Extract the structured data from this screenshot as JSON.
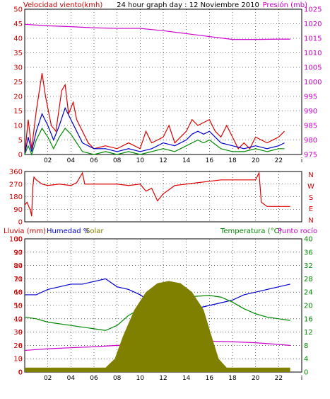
{
  "chart_data": [
    {
      "type": "line",
      "title": "24 hour graph day : 12 Noviembre 2010",
      "ylabel_left": "Velocidad viento(kmh)",
      "ylabel_right": "Presión (mb)",
      "x_ticks": [
        "02",
        "04",
        "06",
        "08",
        "10",
        "12",
        "14",
        "16",
        "18",
        "20",
        "22",
        "i"
      ],
      "y_left_ticks": [
        0,
        5,
        10,
        15,
        20,
        25,
        30,
        35,
        40,
        45,
        50
      ],
      "y_left_range": [
        0,
        50
      ],
      "y_right_ticks": [
        975,
        980,
        985,
        990,
        995,
        1000,
        1005,
        1010,
        1015,
        1020,
        1025
      ],
      "y_right_range": [
        975,
        1025
      ],
      "grid": true,
      "colors": {
        "gust": "#dd0000",
        "wind": "#0000cc",
        "min": "#008800",
        "pressure": "#cc00cc",
        "left_axis": "#cc0000",
        "right_axis": "#cc00cc"
      },
      "series": [
        {
          "color": "#dd0000",
          "axis": "left",
          "points": [
            [
              0,
              0
            ],
            [
              0.3,
              12
            ],
            [
              0.6,
              2
            ],
            [
              1,
              15
            ],
            [
              1.5,
              28
            ],
            [
              1.8,
              20
            ],
            [
              2.3,
              10
            ],
            [
              2.7,
              8
            ],
            [
              3.2,
              22
            ],
            [
              3.5,
              24
            ],
            [
              3.8,
              14
            ],
            [
              4.2,
              18
            ],
            [
              4.5,
              12
            ],
            [
              5,
              8
            ],
            [
              5.5,
              4
            ],
            [
              6,
              2
            ],
            [
              7,
              3
            ],
            [
              8,
              2
            ],
            [
              9,
              4
            ],
            [
              10,
              2
            ],
            [
              10.5,
              8
            ],
            [
              11,
              4
            ],
            [
              12,
              6
            ],
            [
              12.5,
              10
            ],
            [
              13,
              4
            ],
            [
              14,
              8
            ],
            [
              14.5,
              12
            ],
            [
              15,
              10
            ],
            [
              15.5,
              11
            ],
            [
              16,
              12
            ],
            [
              16.5,
              8
            ],
            [
              17,
              6
            ],
            [
              17.5,
              10
            ],
            [
              18,
              6
            ],
            [
              18.5,
              2
            ],
            [
              19,
              4
            ],
            [
              19.5,
              2
            ],
            [
              20,
              6
            ],
            [
              21,
              4
            ],
            [
              22,
              6
            ],
            [
              22.5,
              8
            ]
          ]
        },
        {
          "color": "#0000cc",
          "axis": "left",
          "points": [
            [
              0,
              0
            ],
            [
              0.3,
              6
            ],
            [
              0.6,
              1
            ],
            [
              1,
              8
            ],
            [
              1.5,
              14
            ],
            [
              2,
              10
            ],
            [
              2.5,
              5
            ],
            [
              3,
              10
            ],
            [
              3.5,
              16
            ],
            [
              4,
              12
            ],
            [
              4.5,
              8
            ],
            [
              5,
              4
            ],
            [
              6,
              2
            ],
            [
              7,
              2
            ],
            [
              8,
              1
            ],
            [
              9,
              2
            ],
            [
              10,
              1
            ],
            [
              11,
              2
            ],
            [
              12,
              4
            ],
            [
              13,
              3
            ],
            [
              14,
              5
            ],
            [
              14.5,
              7
            ],
            [
              15,
              8
            ],
            [
              15.5,
              7
            ],
            [
              16,
              8
            ],
            [
              17,
              4
            ],
            [
              18,
              3
            ],
            [
              19,
              2
            ],
            [
              20,
              3
            ],
            [
              21,
              2
            ],
            [
              22,
              3
            ],
            [
              22.5,
              4
            ]
          ]
        },
        {
          "color": "#008800",
          "axis": "left",
          "points": [
            [
              0,
              0
            ],
            [
              0.3,
              3
            ],
            [
              0.6,
              0
            ],
            [
              1,
              5
            ],
            [
              1.5,
              9
            ],
            [
              2,
              6
            ],
            [
              2.5,
              2
            ],
            [
              3,
              6
            ],
            [
              3.5,
              9
            ],
            [
              4,
              7
            ],
            [
              4.5,
              4
            ],
            [
              5,
              1
            ],
            [
              6,
              0
            ],
            [
              7,
              1
            ],
            [
              8,
              0
            ],
            [
              9,
              1
            ],
            [
              10,
              0
            ],
            [
              11,
              1
            ],
            [
              12,
              2
            ],
            [
              13,
              1
            ],
            [
              14,
              3
            ],
            [
              14.5,
              4
            ],
            [
              15,
              5
            ],
            [
              15.5,
              4
            ],
            [
              16,
              5
            ],
            [
              17,
              2
            ],
            [
              18,
              1
            ],
            [
              19,
              1
            ],
            [
              20,
              2
            ],
            [
              21,
              1
            ],
            [
              22,
              2
            ],
            [
              22.5,
              2
            ]
          ]
        },
        {
          "color": "#cc00cc",
          "axis": "right",
          "points": [
            [
              0,
              1019.8
            ],
            [
              2,
              1019.3
            ],
            [
              4,
              1019.0
            ],
            [
              6,
              1018.6
            ],
            [
              8,
              1018.4
            ],
            [
              10,
              1018.4
            ],
            [
              12,
              1017.6
            ],
            [
              14,
              1016.6
            ],
            [
              16,
              1015.6
            ],
            [
              18,
              1014.6
            ],
            [
              20,
              1014.6
            ],
            [
              22,
              1014.7
            ],
            [
              23,
              1014.7
            ]
          ]
        }
      ]
    },
    {
      "type": "line",
      "ylabel_right": "N W S E N",
      "compass": [
        "N",
        "W",
        "S",
        "E",
        "N"
      ],
      "x_ticks": [
        "02",
        "04",
        "06",
        "08",
        "10",
        "12",
        "14",
        "16",
        "18",
        "20",
        "22",
        "i"
      ],
      "y_left_ticks": [
        0,
        90,
        180,
        270,
        360
      ],
      "y_left_range": [
        0,
        360
      ],
      "grid": true,
      "colors": {
        "direction": "#dd0000",
        "axis": "#cc0000",
        "compass": "#cc0000"
      },
      "series": [
        {
          "name": "",
          "color": "#dd0000",
          "points": [
            [
              0,
              120
            ],
            [
              0.2,
              140
            ],
            [
              0.5,
              80
            ],
            [
              0.6,
              40
            ],
            [
              0.7,
              250
            ],
            [
              0.8,
              320
            ],
            [
              1,
              300
            ],
            [
              1.5,
              270
            ],
            [
              2,
              260
            ],
            [
              3,
              270
            ],
            [
              4,
              260
            ],
            [
              4.5,
              280
            ],
            [
              5,
              350
            ],
            [
              5.2,
              270
            ],
            [
              6,
              270
            ],
            [
              7,
              270
            ],
            [
              8,
              270
            ],
            [
              9,
              260
            ],
            [
              10,
              270
            ],
            [
              10.5,
              220
            ],
            [
              11,
              240
            ],
            [
              11.5,
              150
            ],
            [
              12,
              200
            ],
            [
              12.5,
              230
            ],
            [
              13,
              260
            ],
            [
              14,
              270
            ],
            [
              15,
              280
            ],
            [
              16,
              290
            ],
            [
              17,
              300
            ],
            [
              18,
              300
            ],
            [
              19,
              300
            ],
            [
              20,
              300
            ],
            [
              20.3,
              350
            ],
            [
              20.5,
              140
            ],
            [
              21,
              110
            ],
            [
              22,
              110
            ],
            [
              23,
              110
            ]
          ]
        }
      ]
    },
    {
      "type": "area",
      "legend": [
        "Lluvia (mm)",
        "Humedad %",
        "Solar",
        "Temperatura (°C)",
        "Punto rocío"
      ],
      "ylabel_left": "Lluvia (mm)",
      "ylabel_right": "Temperatura (°C)",
      "x_ticks": [
        "02",
        "04",
        "06",
        "08",
        "10",
        "12",
        "14",
        "16",
        "18",
        "20",
        "22",
        "i"
      ],
      "y_left_ticks": [
        0,
        10,
        20,
        30,
        40,
        50,
        60,
        70,
        80,
        90,
        100
      ],
      "y_left_range": [
        0,
        100
      ],
      "y_mid_ticks": [
        0,
        3,
        6,
        9,
        12,
        15,
        18,
        21,
        24,
        27,
        30
      ],
      "y_mid_range": [
        0,
        30
      ],
      "y_right_ticks": [
        0,
        4,
        8,
        12,
        16,
        20,
        24,
        28,
        32,
        36,
        40
      ],
      "y_right_range": [
        0,
        40
      ],
      "grid": true,
      "colors": {
        "rain": "#cc0000",
        "humidity": "#0000cc",
        "solar": "#808000",
        "temperature": "#008800",
        "dewpoint": "#cc00cc",
        "left_axis": "#cc0000",
        "mid_axis": "#cc0000",
        "right_axis": "#008800"
      },
      "series": [
        {
          "color": "#0000cc",
          "axis": "left",
          "points": [
            [
              0,
              58
            ],
            [
              1,
              58
            ],
            [
              2,
              62
            ],
            [
              3,
              64
            ],
            [
              4,
              66
            ],
            [
              5,
              66
            ],
            [
              6,
              68
            ],
            [
              7,
              70
            ],
            [
              8,
              64
            ],
            [
              9,
              62
            ],
            [
              10,
              58
            ],
            [
              11,
              52
            ],
            [
              12,
              48
            ],
            [
              13,
              46
            ],
            [
              14,
              46
            ],
            [
              15,
              48
            ],
            [
              16,
              50
            ],
            [
              17,
              52
            ],
            [
              18,
              54
            ],
            [
              19,
              58
            ],
            [
              20,
              60
            ],
            [
              21,
              62
            ],
            [
              22,
              64
            ],
            [
              23,
              66
            ]
          ]
        },
        {
          "color": "#008800",
          "axis": "right",
          "points": [
            [
              0,
              16.5
            ],
            [
              1,
              16
            ],
            [
              2,
              15
            ],
            [
              3,
              14.5
            ],
            [
              4,
              14
            ],
            [
              5,
              13.5
            ],
            [
              6,
              13
            ],
            [
              7,
              12.5
            ],
            [
              8,
              14
            ],
            [
              9,
              17
            ],
            [
              10,
              19
            ],
            [
              11,
              20
            ],
            [
              12,
              21.5
            ],
            [
              13,
              22
            ],
            [
              14,
              22.5
            ],
            [
              15,
              22.8
            ],
            [
              16,
              23
            ],
            [
              17,
              22.5
            ],
            [
              18,
              21
            ],
            [
              19,
              19
            ],
            [
              20,
              17.5
            ],
            [
              21,
              16.5
            ],
            [
              22,
              16
            ],
            [
              23,
              15.5
            ]
          ]
        },
        {
          "color": "#cc00cc",
          "axis": "right",
          "points": [
            [
              0,
              6.5
            ],
            [
              2,
              7
            ],
            [
              4,
              7.3
            ],
            [
              6,
              7.6
            ],
            [
              8,
              8
            ],
            [
              10,
              8.3
            ],
            [
              12,
              8.8
            ],
            [
              14,
              9.1
            ],
            [
              16,
              9.3
            ],
            [
              18,
              9.1
            ],
            [
              20,
              8.8
            ],
            [
              22,
              8.3
            ],
            [
              23,
              8.0
            ]
          ]
        },
        {
          "color": "#808000",
          "axis": "mid",
          "area": true,
          "points": [
            [
              0,
              1
            ],
            [
              7,
              1
            ],
            [
              7.8,
              3
            ],
            [
              8.5,
              8
            ],
            [
              9.5,
              14
            ],
            [
              10.5,
              18
            ],
            [
              11.5,
              20
            ],
            [
              12.5,
              20.5
            ],
            [
              13.5,
              20
            ],
            [
              14.5,
              18
            ],
            [
              15.5,
              14
            ],
            [
              16.2,
              8
            ],
            [
              16.8,
              3
            ],
            [
              17.5,
              1
            ],
            [
              23,
              1
            ]
          ]
        }
      ]
    }
  ]
}
